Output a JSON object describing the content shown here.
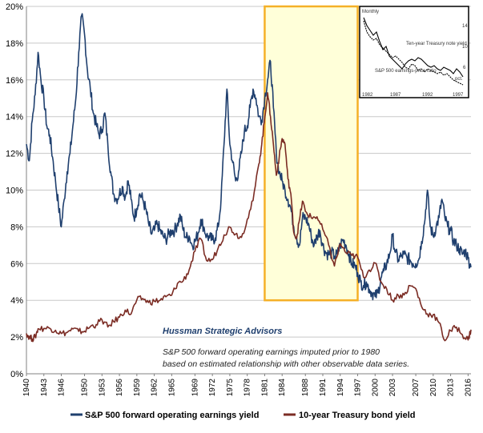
{
  "chart_data": {
    "type": "line",
    "xlim": [
      1940,
      2016.5
    ],
    "ylim": [
      0,
      20
    ],
    "y_ticks": [
      "0%",
      "2%",
      "4%",
      "6%",
      "8%",
      "10%",
      "12%",
      "14%",
      "16%",
      "18%",
      "20%"
    ],
    "x_ticks": [
      "1940",
      "1943",
      "1946",
      "1950",
      "1953",
      "1956",
      "1959",
      "1962",
      "1965",
      "1969",
      "1972",
      "1975",
      "1978",
      "1981",
      "1984",
      "1988",
      "1991",
      "1994",
      "1997",
      "2000",
      "2003",
      "2007",
      "2010",
      "2013",
      "2016"
    ],
    "grid": true,
    "legend_position": "bottom",
    "highlight_region": {
      "x_start": 1981,
      "x_end": 1997,
      "y_start": 4,
      "y_end": 20,
      "fill": "#ffffd9",
      "stroke": "#f5b027"
    },
    "series": [
      {
        "name": "S&P 500 forward operating earnings yield",
        "color": "#1f3f6e",
        "points": [
          [
            1940,
            12.5
          ],
          [
            1940.5,
            11.6
          ],
          [
            1941,
            13.8
          ],
          [
            1941.5,
            15.2
          ],
          [
            1942,
            17.5
          ],
          [
            1942.5,
            16.0
          ],
          [
            1943,
            15.0
          ],
          [
            1943.5,
            13.5
          ],
          [
            1944,
            13.0
          ],
          [
            1944.5,
            11.8
          ],
          [
            1945,
            10.5
          ],
          [
            1945.5,
            9.2
          ],
          [
            1946,
            8.0
          ],
          [
            1946.5,
            9.5
          ],
          [
            1947,
            11.0
          ],
          [
            1947.5,
            12.0
          ],
          [
            1948,
            13.5
          ],
          [
            1948.5,
            15.0
          ],
          [
            1949,
            17.5
          ],
          [
            1949.5,
            19.5
          ],
          [
            1950,
            18.5
          ],
          [
            1950.5,
            16.5
          ],
          [
            1951,
            15.5
          ],
          [
            1951.5,
            14.2
          ],
          [
            1952,
            13.6
          ],
          [
            1952.5,
            13.0
          ],
          [
            1953,
            13.3
          ],
          [
            1953.5,
            14.2
          ],
          [
            1954,
            12.5
          ],
          [
            1954.5,
            11.0
          ],
          [
            1955,
            9.8
          ],
          [
            1955.5,
            9.5
          ],
          [
            1956,
            9.8
          ],
          [
            1956.5,
            10.2
          ],
          [
            1957,
            9.6
          ],
          [
            1957.5,
            10.5
          ],
          [
            1958,
            9.5
          ],
          [
            1958.5,
            8.5
          ],
          [
            1959,
            9.0
          ],
          [
            1959.5,
            9.8
          ],
          [
            1960,
            9.5
          ],
          [
            1960.5,
            9.0
          ],
          [
            1961,
            8.2
          ],
          [
            1961.5,
            7.6
          ],
          [
            1962,
            7.8
          ],
          [
            1962.5,
            8.2
          ],
          [
            1963,
            7.8
          ],
          [
            1963.5,
            7.5
          ],
          [
            1964,
            7.3
          ],
          [
            1964.5,
            7.6
          ],
          [
            1965,
            7.8
          ],
          [
            1965.5,
            7.8
          ],
          [
            1966,
            8.2
          ],
          [
            1966.5,
            8.6
          ],
          [
            1967,
            7.8
          ],
          [
            1967.5,
            7.4
          ],
          [
            1968,
            7.5
          ],
          [
            1968.5,
            7.0
          ],
          [
            1969,
            7.2
          ],
          [
            1969.5,
            7.6
          ],
          [
            1970,
            8.4
          ],
          [
            1970.5,
            8.0
          ],
          [
            1971,
            7.5
          ],
          [
            1971.5,
            7.4
          ],
          [
            1972,
            7.3
          ],
          [
            1972.5,
            7.4
          ],
          [
            1973,
            8.0
          ],
          [
            1973.5,
            9.5
          ],
          [
            1974,
            12.5
          ],
          [
            1974.5,
            15.5
          ],
          [
            1975,
            12.5
          ],
          [
            1975.5,
            11.5
          ],
          [
            1976,
            10.5
          ],
          [
            1976.5,
            11.0
          ],
          [
            1977,
            12.0
          ],
          [
            1977.5,
            13.2
          ],
          [
            1978,
            13.5
          ],
          [
            1978.5,
            14.5
          ],
          [
            1979,
            15.5
          ],
          [
            1979.5,
            15.0
          ],
          [
            1980,
            14.0
          ],
          [
            1980.5,
            13.8
          ],
          [
            1981,
            15.0
          ],
          [
            1981.5,
            16.0
          ],
          [
            1982,
            17.0
          ],
          [
            1982.5,
            14.5
          ],
          [
            1983,
            12.0
          ],
          [
            1983.5,
            11.0
          ],
          [
            1984,
            10.5
          ],
          [
            1984.5,
            10.0
          ],
          [
            1985,
            9.5
          ],
          [
            1985.5,
            9.0
          ],
          [
            1986,
            8.0
          ],
          [
            1986.5,
            7.4
          ],
          [
            1987,
            7.0
          ],
          [
            1987.5,
            8.5
          ],
          [
            1988,
            8.5
          ],
          [
            1988.5,
            8.2
          ],
          [
            1989,
            7.5
          ],
          [
            1989.5,
            7.0
          ],
          [
            1990,
            7.5
          ],
          [
            1990.5,
            7.8
          ],
          [
            1991,
            7.0
          ],
          [
            1991.5,
            6.6
          ],
          [
            1992,
            6.5
          ],
          [
            1992.5,
            6.6
          ],
          [
            1993,
            6.4
          ],
          [
            1993.5,
            6.5
          ],
          [
            1994,
            7.0
          ],
          [
            1994.5,
            7.3
          ],
          [
            1995,
            7.0
          ],
          [
            1995.5,
            6.5
          ],
          [
            1996,
            6.0
          ],
          [
            1996.5,
            5.9
          ],
          [
            1997,
            5.5
          ],
          [
            1997.5,
            5.0
          ],
          [
            1998,
            4.8
          ],
          [
            1998.5,
            5.0
          ],
          [
            1999,
            4.6
          ],
          [
            1999.5,
            4.4
          ],
          [
            2000,
            4.2
          ],
          [
            2000.5,
            4.4
          ],
          [
            2001,
            5.2
          ],
          [
            2001.5,
            5.6
          ],
          [
            2002,
            6.0
          ],
          [
            2002.5,
            6.5
          ],
          [
            2003,
            7.5
          ],
          [
            2003.5,
            6.6
          ],
          [
            2004,
            6.2
          ],
          [
            2004.5,
            6.4
          ],
          [
            2005,
            6.5
          ],
          [
            2005.5,
            6.3
          ],
          [
            2006,
            6.2
          ],
          [
            2006.5,
            6.0
          ],
          [
            2007,
            6.0
          ],
          [
            2007.5,
            6.2
          ],
          [
            2008,
            7.2
          ],
          [
            2008.5,
            8.2
          ],
          [
            2009,
            10.0
          ],
          [
            2009.5,
            8.0
          ],
          [
            2010,
            7.5
          ],
          [
            2010.5,
            8.0
          ],
          [
            2011,
            8.5
          ],
          [
            2011.5,
            9.5
          ],
          [
            2012,
            8.5
          ],
          [
            2012.5,
            8.0
          ],
          [
            2013,
            7.8
          ],
          [
            2013.5,
            7.2
          ],
          [
            2014,
            7.0
          ],
          [
            2014.5,
            6.8
          ],
          [
            2015,
            6.5
          ],
          [
            2015.5,
            6.7
          ],
          [
            2016,
            6.3
          ],
          [
            2016.5,
            5.8
          ]
        ]
      },
      {
        "name": "10-year Treasury bond yield",
        "color": "#7b2c24",
        "points": [
          [
            1940,
            2.2
          ],
          [
            1940.5,
            2.0
          ],
          [
            1941,
            1.9
          ],
          [
            1941.5,
            2.0
          ],
          [
            1942,
            2.45
          ],
          [
            1943,
            2.47
          ],
          [
            1944,
            2.48
          ],
          [
            1945,
            2.37
          ],
          [
            1946,
            2.19
          ],
          [
            1947,
            2.25
          ],
          [
            1948,
            2.44
          ],
          [
            1949,
            2.31
          ],
          [
            1950,
            2.32
          ],
          [
            1951,
            2.57
          ],
          [
            1952,
            2.68
          ],
          [
            1953,
            2.94
          ],
          [
            1954,
            2.55
          ],
          [
            1955,
            2.84
          ],
          [
            1956,
            3.08
          ],
          [
            1957,
            3.47
          ],
          [
            1958,
            3.25
          ],
          [
            1959,
            4.02
          ],
          [
            1960,
            4.1
          ],
          [
            1961,
            3.88
          ],
          [
            1962,
            3.95
          ],
          [
            1963,
            4.0
          ],
          [
            1964,
            4.19
          ],
          [
            1965,
            4.28
          ],
          [
            1966,
            4.92
          ],
          [
            1967,
            5.07
          ],
          [
            1968,
            5.65
          ],
          [
            1969,
            6.67
          ],
          [
            1970,
            7.35
          ],
          [
            1971,
            6.16
          ],
          [
            1972,
            6.21
          ],
          [
            1973,
            6.85
          ],
          [
            1974,
            7.56
          ],
          [
            1975,
            7.99
          ],
          [
            1976,
            7.61
          ],
          [
            1977,
            7.42
          ],
          [
            1978,
            8.41
          ],
          [
            1979,
            9.43
          ],
          [
            1980,
            11.43
          ],
          [
            1980.5,
            12.5
          ],
          [
            1981,
            13.92
          ],
          [
            1981.5,
            15.3
          ],
          [
            1982,
            14.0
          ],
          [
            1982.5,
            12.5
          ],
          [
            1983,
            10.8
          ],
          [
            1983.5,
            11.8
          ],
          [
            1984,
            12.8
          ],
          [
            1984.5,
            12.5
          ],
          [
            1985,
            10.6
          ],
          [
            1985.5,
            9.8
          ],
          [
            1986,
            7.7
          ],
          [
            1986.5,
            7.4
          ],
          [
            1987,
            8.4
          ],
          [
            1987.5,
            9.4
          ],
          [
            1988,
            8.85
          ],
          [
            1989,
            8.5
          ],
          [
            1990,
            8.55
          ],
          [
            1991,
            7.86
          ],
          [
            1992,
            7.01
          ],
          [
            1993,
            5.87
          ],
          [
            1994,
            7.08
          ],
          [
            1995,
            6.58
          ],
          [
            1996,
            6.44
          ],
          [
            1997,
            6.35
          ],
          [
            1998,
            5.26
          ],
          [
            1999,
            5.65
          ],
          [
            2000,
            6.03
          ],
          [
            2001,
            5.02
          ],
          [
            2002,
            4.61
          ],
          [
            2003,
            4.01
          ],
          [
            2004,
            4.27
          ],
          [
            2005,
            4.29
          ],
          [
            2006,
            4.8
          ],
          [
            2007,
            4.63
          ],
          [
            2008,
            3.66
          ],
          [
            2009,
            3.26
          ],
          [
            2010,
            3.22
          ],
          [
            2011,
            2.78
          ],
          [
            2012,
            1.8
          ],
          [
            2013,
            2.35
          ],
          [
            2014,
            2.54
          ],
          [
            2015,
            2.14
          ],
          [
            2016,
            1.84
          ],
          [
            2016.5,
            2.4
          ]
        ]
      }
    ],
    "annotations": {
      "brand": "Hussman Strategic Advisors",
      "note_line1": "S&P 500 forward operating earnings imputed prior to 1980",
      "note_line2": "based on estimated relationship with other observable data series."
    },
    "inset": {
      "label_top": "Monthly",
      "label_treasury": "Ten-year Treasury note yield",
      "label_sp": "S&P 500 earnings-price ratio",
      "label_pct": "pct.",
      "x_ticks": [
        "1982",
        "1987",
        "1992",
        "1997"
      ],
      "y_ticks": [
        "14",
        "10",
        "6"
      ]
    }
  }
}
